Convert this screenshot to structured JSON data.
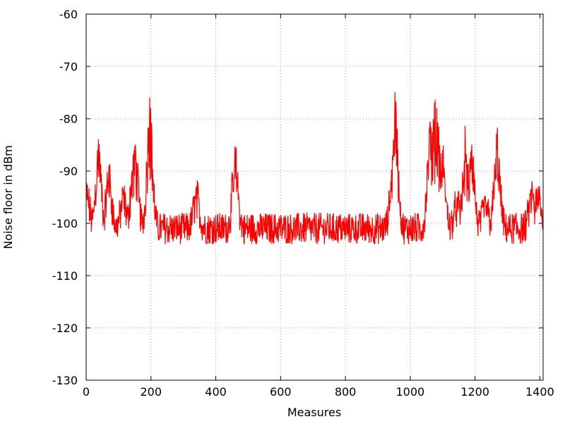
{
  "chart_data": {
    "type": "line",
    "title": "",
    "xlabel": "Measures",
    "ylabel": "Noise floor in dBm",
    "xlim": [
      0,
      1410
    ],
    "ylim": [
      -130,
      -60
    ],
    "xticks": [
      0,
      200,
      400,
      600,
      800,
      1000,
      1200,
      1400
    ],
    "yticks": [
      -130,
      -120,
      -110,
      -100,
      -90,
      -80,
      -70,
      -60
    ],
    "grid": true,
    "line_color": "#ff0000",
    "baseline": -101,
    "peaks": [
      {
        "x": 2,
        "y": -93
      },
      {
        "x": 38,
        "y": -84
      },
      {
        "x": 70,
        "y": -89
      },
      {
        "x": 115,
        "y": -94
      },
      {
        "x": 145,
        "y": -87
      },
      {
        "x": 152,
        "y": -85
      },
      {
        "x": 196,
        "y": -76
      },
      {
        "x": 340,
        "y": -93
      },
      {
        "x": 460,
        "y": -86
      },
      {
        "x": 948,
        "y": -84
      },
      {
        "x": 953,
        "y": -75
      },
      {
        "x": 1062,
        "y": -81
      },
      {
        "x": 1075,
        "y": -77
      },
      {
        "x": 1082,
        "y": -78
      },
      {
        "x": 1100,
        "y": -86
      },
      {
        "x": 1145,
        "y": -95
      },
      {
        "x": 1170,
        "y": -84
      },
      {
        "x": 1190,
        "y": -85
      },
      {
        "x": 1232,
        "y": -95
      },
      {
        "x": 1268,
        "y": -83
      },
      {
        "x": 1375,
        "y": -93
      },
      {
        "x": 1395,
        "y": -93
      }
    ]
  }
}
